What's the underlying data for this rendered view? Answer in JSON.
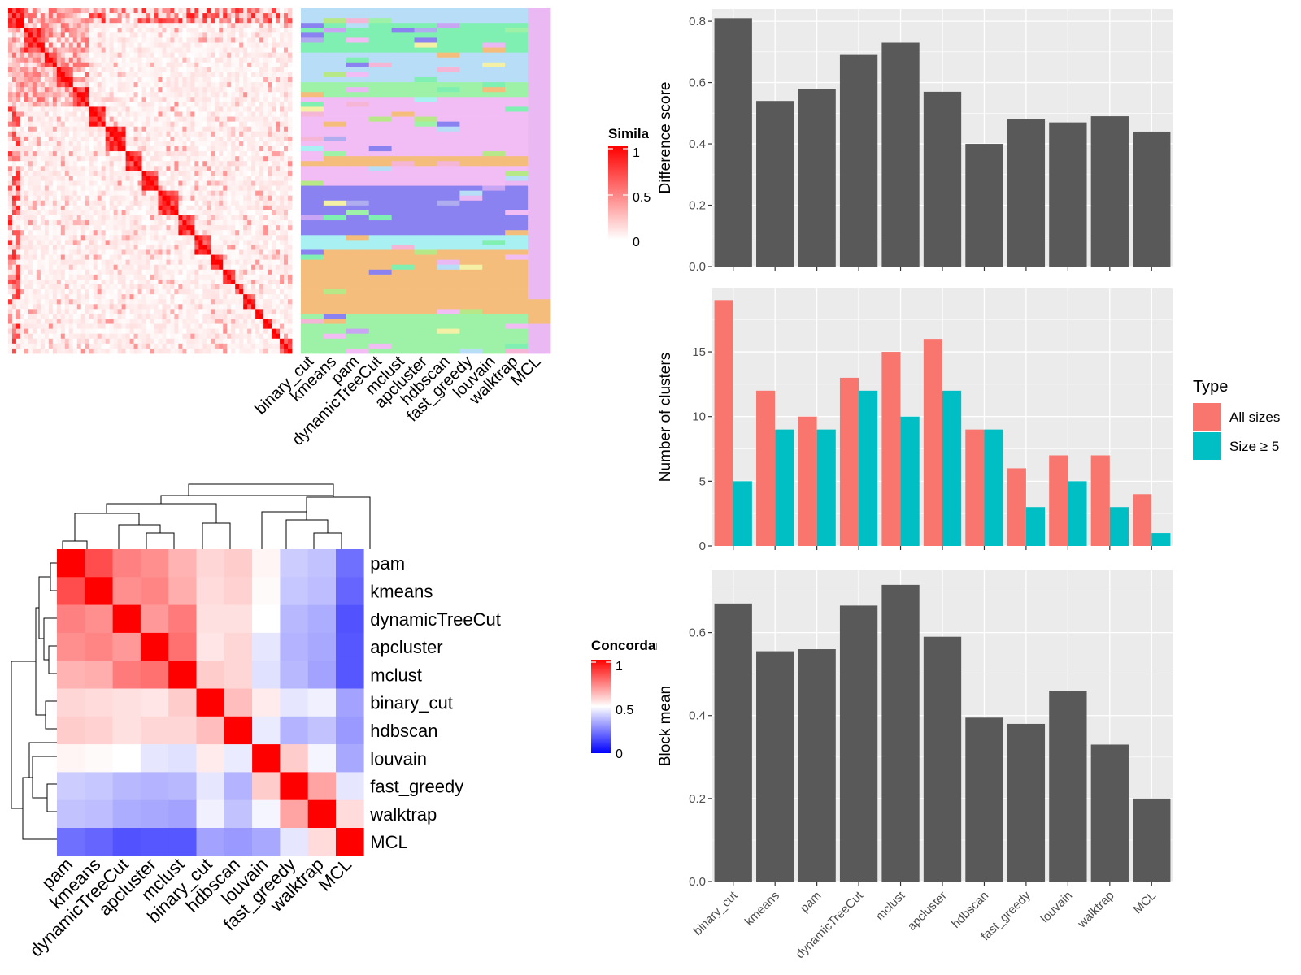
{
  "colors": {
    "bar_dark": "#595959",
    "panel_bg": "#EBEBEB",
    "grid": "#FFFFFF",
    "all_sizes": "#F8766D",
    "size_ge5": "#00BFC4",
    "sim_high": "#FF0000",
    "sim_low": "#FFFFFF",
    "conc_high": "#FF0000",
    "conc_mid": "#FFFFFF",
    "conc_low": "#0000FF",
    "class_palette": [
      "#F5BD7B",
      "#B8DDF6",
      "#8A82F0",
      "#F2BDF5",
      "#9EF2A8",
      "#A9F0F3",
      "#7FF0B2",
      "#F5B6D5",
      "#B0ACF0",
      "#B7E887",
      "#F4F1A6",
      "#C8A6F4",
      "#EAB9F3"
    ]
  },
  "methods": [
    "binary_cut",
    "kmeans",
    "pam",
    "dynamicTreeCut",
    "mclust",
    "apcluster",
    "hdbscan",
    "fast_greedy",
    "louvain",
    "walktrap",
    "MCL"
  ],
  "top_left": {
    "similarity_legend_title": "Similarity",
    "similarity_ticks": [
      "1",
      "0.5",
      "0"
    ],
    "class_columns": [
      "binary_cut",
      "kmeans",
      "pam",
      "dynamicTreeCut",
      "mclust",
      "apcluster",
      "hdbscan",
      "fast_greedy",
      "louvain",
      "walktrap",
      "MCL"
    ]
  },
  "concordance": {
    "legend_title": "Concordance",
    "legend_ticks": [
      "1",
      "0.5",
      "0"
    ],
    "order": [
      "pam",
      "kmeans",
      "dynamicTreeCut",
      "apcluster",
      "mclust",
      "binary_cut",
      "hdbscan",
      "louvain",
      "fast_greedy",
      "walktrap",
      "MCL"
    ],
    "matrix": [
      [
        1.0,
        0.85,
        0.75,
        0.72,
        0.65,
        0.58,
        0.6,
        0.52,
        0.4,
        0.38,
        0.22
      ],
      [
        0.85,
        1.0,
        0.72,
        0.74,
        0.66,
        0.57,
        0.59,
        0.51,
        0.39,
        0.37,
        0.2
      ],
      [
        0.75,
        0.72,
        1.0,
        0.7,
        0.76,
        0.56,
        0.56,
        0.5,
        0.36,
        0.34,
        0.16
      ],
      [
        0.72,
        0.74,
        0.7,
        1.0,
        0.78,
        0.55,
        0.58,
        0.45,
        0.35,
        0.33,
        0.17
      ],
      [
        0.65,
        0.66,
        0.76,
        0.78,
        1.0,
        0.6,
        0.58,
        0.44,
        0.36,
        0.32,
        0.17
      ],
      [
        0.58,
        0.57,
        0.56,
        0.55,
        0.6,
        1.0,
        0.63,
        0.54,
        0.45,
        0.47,
        0.32
      ],
      [
        0.6,
        0.59,
        0.56,
        0.58,
        0.58,
        0.63,
        1.0,
        0.46,
        0.35,
        0.38,
        0.3
      ],
      [
        0.52,
        0.51,
        0.5,
        0.45,
        0.44,
        0.54,
        0.46,
        1.0,
        0.6,
        0.48,
        0.33
      ],
      [
        0.4,
        0.39,
        0.36,
        0.35,
        0.36,
        0.45,
        0.35,
        0.6,
        1.0,
        0.68,
        0.45
      ],
      [
        0.38,
        0.37,
        0.34,
        0.33,
        0.32,
        0.47,
        0.38,
        0.48,
        0.68,
        1.0,
        0.57
      ],
      [
        0.22,
        0.2,
        0.16,
        0.17,
        0.17,
        0.32,
        0.3,
        0.33,
        0.45,
        0.57,
        1.0
      ]
    ]
  },
  "chart_data": [
    {
      "type": "bar",
      "ylabel": "Difference score",
      "categories": [
        "binary_cut",
        "kmeans",
        "pam",
        "dynamicTreeCut",
        "mclust",
        "apcluster",
        "hdbscan",
        "fast_greedy",
        "louvain",
        "walktrap",
        "MCL"
      ],
      "values": [
        0.81,
        0.54,
        0.58,
        0.69,
        0.73,
        0.57,
        0.4,
        0.48,
        0.47,
        0.49,
        0.44
      ],
      "ylim": [
        0,
        0.84
      ],
      "yticks": [
        "0.0",
        "0.2",
        "0.4",
        "0.6",
        "0.8"
      ],
      "grid": true
    },
    {
      "type": "bar",
      "ylabel": "Number of clusters",
      "categories": [
        "binary_cut",
        "kmeans",
        "pam",
        "dynamicTreeCut",
        "mclust",
        "apcluster",
        "hdbscan",
        "fast_greedy",
        "louvain",
        "walktrap",
        "MCL"
      ],
      "series": [
        {
          "name": "All sizes",
          "values": [
            19,
            12,
            10,
            13,
            15,
            16,
            9,
            6,
            7,
            7,
            4
          ]
        },
        {
          "name": "Size ≥ 5",
          "values": [
            5,
            9,
            9,
            12,
            10,
            12,
            9,
            3,
            5,
            3,
            1
          ]
        }
      ],
      "legend_title": "Type",
      "legend_position": "right",
      "ylim": [
        0,
        19.9
      ],
      "yticks": [
        "0",
        "5",
        "10",
        "15"
      ],
      "grid": true
    },
    {
      "type": "bar",
      "ylabel": "Block mean",
      "categories": [
        "binary_cut",
        "kmeans",
        "pam",
        "dynamicTreeCut",
        "mclust",
        "apcluster",
        "hdbscan",
        "fast_greedy",
        "louvain",
        "walktrap",
        "MCL"
      ],
      "values": [
        0.67,
        0.555,
        0.56,
        0.665,
        0.715,
        0.59,
        0.395,
        0.38,
        0.46,
        0.33,
        0.2
      ],
      "ylim": [
        0,
        0.75
      ],
      "yticks": [
        "0.0",
        "0.2",
        "0.4",
        "0.6"
      ],
      "grid": true
    }
  ]
}
